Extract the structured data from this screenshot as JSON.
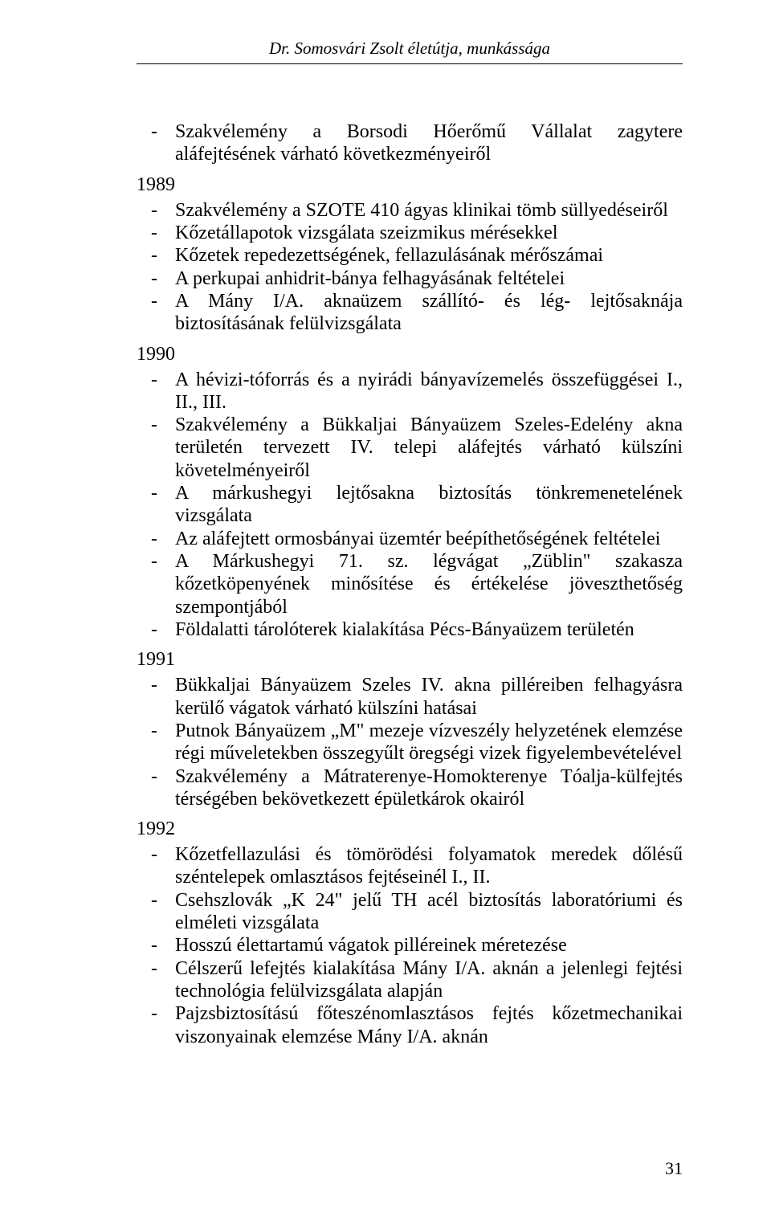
{
  "header_title": "Dr. Somosvári Zsolt életútja, munkássága",
  "page_number": "31",
  "sections": [
    {
      "year": "",
      "items": [
        "Szakvélemény a Borsodi Hőerőmű Vállalat zagytere aláfejtésének várható következményeiről"
      ]
    },
    {
      "year": "1989",
      "items": [
        "Szakvélemény a SZOTE 410 ágyas klinikai tömb süllyedéseiről",
        "Kőzetállapotok vizsgálata szeizmikus mérésekkel",
        "Kőzetek repedezettségének, fellazulásának mérőszámai",
        "A perkupai anhidrit-bánya felhagyásának feltételei",
        "A Mány I/A. aknaüzem szállító- és lég- lejtősaknája biztosításának felülvizsgálata"
      ]
    },
    {
      "year": "1990",
      "items": [
        "A hévizi-tóforrás és a nyirádi bányavízemelés összefüggései I., II., III.",
        "Szakvélemény a Bükkaljai Bányaüzem Szeles-Edelény akna területén tervezett IV. telepi aláfejtés várható külszíni követelményeiről",
        "A márkushegyi lejtősakna biztosítás tönkremenetelének vizsgálata",
        "Az aláfejtett ormosbányai üzemtér beépíthetőségének feltételei",
        "A Márkushegyi 71. sz. légvágat „Züblin\" szakasza kőzetköpenyének minősítése és értékelése jöveszthetőség szempontjából",
        "Földalatti tárolóterek kialakítása Pécs-Bányaüzem területén"
      ]
    },
    {
      "year": "1991",
      "items": [
        "Bükkaljai Bányaüzem Szeles IV. akna pilléreiben felhagyásra kerülő vágatok várható külszíni hatásai",
        "Putnok Bányaüzem „M\" mezeje vízveszély helyzetének elemzése régi műveletekben összegyűlt öregségi vizek figyelembevételével",
        "Szakvélemény a Mátraterenye-Homokterenye Tóalja-külfejtés térségében bekövetkezett épületkárok okairól"
      ]
    },
    {
      "year": "1992",
      "items": [
        "Kőzetfellazulási és tömörödési folyamatok meredek dőlésű széntelepek omlasztásos fejtéseinél I., II.",
        "Csehszlovák „K 24\" jelű TH acél biztosítás laboratóriumi és elméleti vizsgálata",
        "Hosszú élettartamú vágatok pilléreinek méretezése",
        "Célszerű lefejtés kialakítása Mány I/A. aknán a jelenlegi fejtési technológia felülvizsgálata alapján",
        "Pajzsbiztosítású főteszénomlasztásos fejtés kőzetmechanikai viszonyainak elemzése Mány I/A. aknán"
      ]
    }
  ]
}
